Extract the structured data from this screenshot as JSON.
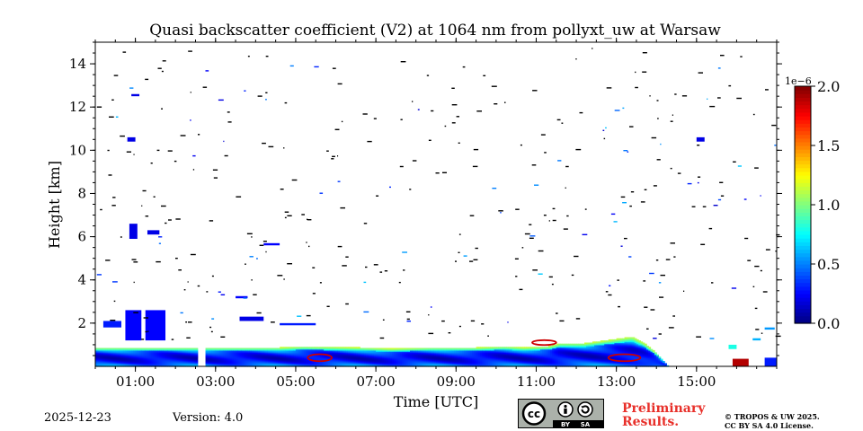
{
  "chart_data": {
    "type": "heatmap",
    "title": "Quasi backscatter coefficient (V2) at 1064 nm from pollyxt_uw at Warsaw",
    "xlabel": "Time [UTC]",
    "ylabel": "Height [km]",
    "xlim_hours": [
      0,
      17
    ],
    "ylim_km": [
      0,
      15
    ],
    "x_ticks": [
      {
        "value": 1,
        "label": "01:00"
      },
      {
        "value": 3,
        "label": "03:00"
      },
      {
        "value": 5,
        "label": "05:00"
      },
      {
        "value": 7,
        "label": "07:00"
      },
      {
        "value": 9,
        "label": "09:00"
      },
      {
        "value": 11,
        "label": "11:00"
      },
      {
        "value": 13,
        "label": "13:00"
      },
      {
        "value": 15,
        "label": "15:00"
      }
    ],
    "y_ticks": [
      {
        "value": 2,
        "label": "2"
      },
      {
        "value": 4,
        "label": "4"
      },
      {
        "value": 6,
        "label": "6"
      },
      {
        "value": 8,
        "label": "8"
      },
      {
        "value": 10,
        "label": "10"
      },
      {
        "value": 12,
        "label": "12"
      },
      {
        "value": 14,
        "label": "14"
      }
    ],
    "colorbar": {
      "min": 0.0,
      "max": 2.0,
      "exponent_label": "1e−6",
      "ticks": [
        {
          "value": 0.0,
          "label": "0.0"
        },
        {
          "value": 0.5,
          "label": "0.5"
        },
        {
          "value": 1.0,
          "label": "1.0"
        },
        {
          "value": 1.5,
          "label": "1.5"
        },
        {
          "value": 2.0,
          "label": "2.0"
        }
      ],
      "colormap": "jet"
    },
    "boundary_layer_top_km": [
      [
        0.0,
        0.85
      ],
      [
        2.6,
        0.85
      ],
      [
        4.6,
        0.85
      ],
      [
        5.2,
        0.9
      ],
      [
        6.6,
        0.85
      ],
      [
        7.4,
        0.8
      ],
      [
        8.4,
        0.85
      ],
      [
        9.5,
        0.85
      ],
      [
        10.2,
        0.9
      ],
      [
        10.7,
        0.85
      ],
      [
        11.3,
        0.9
      ],
      [
        11.6,
        1.05
      ],
      [
        12.2,
        1.05
      ],
      [
        12.8,
        1.2
      ],
      [
        13.4,
        1.35
      ],
      [
        13.7,
        1.05
      ],
      [
        14.0,
        0.6
      ],
      [
        14.3,
        0.0
      ]
    ],
    "data_gap_hours": [
      2.55,
      2.7
    ],
    "cloud_patches": [
      {
        "x0": 0.2,
        "x1": 0.65,
        "y0": 1.8,
        "y1": 2.1,
        "level": 0.3
      },
      {
        "x0": 0.75,
        "x1": 1.15,
        "y0": 1.2,
        "y1": 2.6,
        "level": 0.25
      },
      {
        "x0": 1.25,
        "x1": 1.75,
        "y0": 1.2,
        "y1": 2.6,
        "level": 0.25
      },
      {
        "x0": 0.85,
        "x1": 1.05,
        "y0": 5.9,
        "y1": 6.6,
        "level": 0.2
      },
      {
        "x0": 1.3,
        "x1": 1.6,
        "y0": 6.1,
        "y1": 6.3,
        "level": 0.2
      },
      {
        "x0": 0.9,
        "x1": 1.1,
        "y0": 12.5,
        "y1": 12.6,
        "level": 0.2
      },
      {
        "x0": 0.8,
        "x1": 1.0,
        "y0": 10.4,
        "y1": 10.6,
        "level": 0.2
      },
      {
        "x0": 3.5,
        "x1": 3.8,
        "y0": 3.15,
        "y1": 3.25,
        "level": 0.25
      },
      {
        "x0": 3.6,
        "x1": 4.2,
        "y0": 2.1,
        "y1": 2.3,
        "level": 0.2
      },
      {
        "x0": 4.2,
        "x1": 4.6,
        "y0": 5.6,
        "y1": 5.7,
        "level": 0.25
      },
      {
        "x0": 4.6,
        "x1": 5.5,
        "y0": 1.9,
        "y1": 2.0,
        "level": 0.3
      },
      {
        "x0": 15.0,
        "x1": 15.2,
        "y0": 10.4,
        "y1": 10.6,
        "level": 0.2
      },
      {
        "x0": 15.8,
        "x1": 16.0,
        "y0": 0.8,
        "y1": 1.0,
        "level": 0.8
      },
      {
        "x0": 16.4,
        "x1": 16.6,
        "y0": 1.2,
        "y1": 1.3,
        "level": 0.6
      },
      {
        "x0": 16.7,
        "x1": 16.95,
        "y0": 1.7,
        "y1": 1.8,
        "level": 0.55
      },
      {
        "x0": 15.9,
        "x1": 16.3,
        "y0": 0.0,
        "y1": 0.35,
        "level": 1.9
      },
      {
        "x0": 16.7,
        "x1": 17.0,
        "y0": 0.0,
        "y1": 0.4,
        "level": 0.3
      }
    ],
    "aerosol_red_spots": [
      {
        "x0": 5.3,
        "x1": 5.9,
        "y0": 0.3,
        "y1": 0.5
      },
      {
        "x0": 12.8,
        "x1": 13.6,
        "y0": 0.3,
        "y1": 0.5
      },
      {
        "x0": 10.9,
        "x1": 11.5,
        "y0": 1.05,
        "y1": 1.15
      }
    ]
  },
  "footer": {
    "date": "2025-12-23",
    "version": "Version: 4.0",
    "license_badge": {
      "cc": "cc",
      "by": "BY",
      "sa": "SA"
    },
    "preliminary_line1": "Preliminary",
    "preliminary_line2": "Results.",
    "copyright_line1": "© TROPOS & UW 2025.",
    "copyright_line2": "CC BY SA 4.0 License."
  }
}
